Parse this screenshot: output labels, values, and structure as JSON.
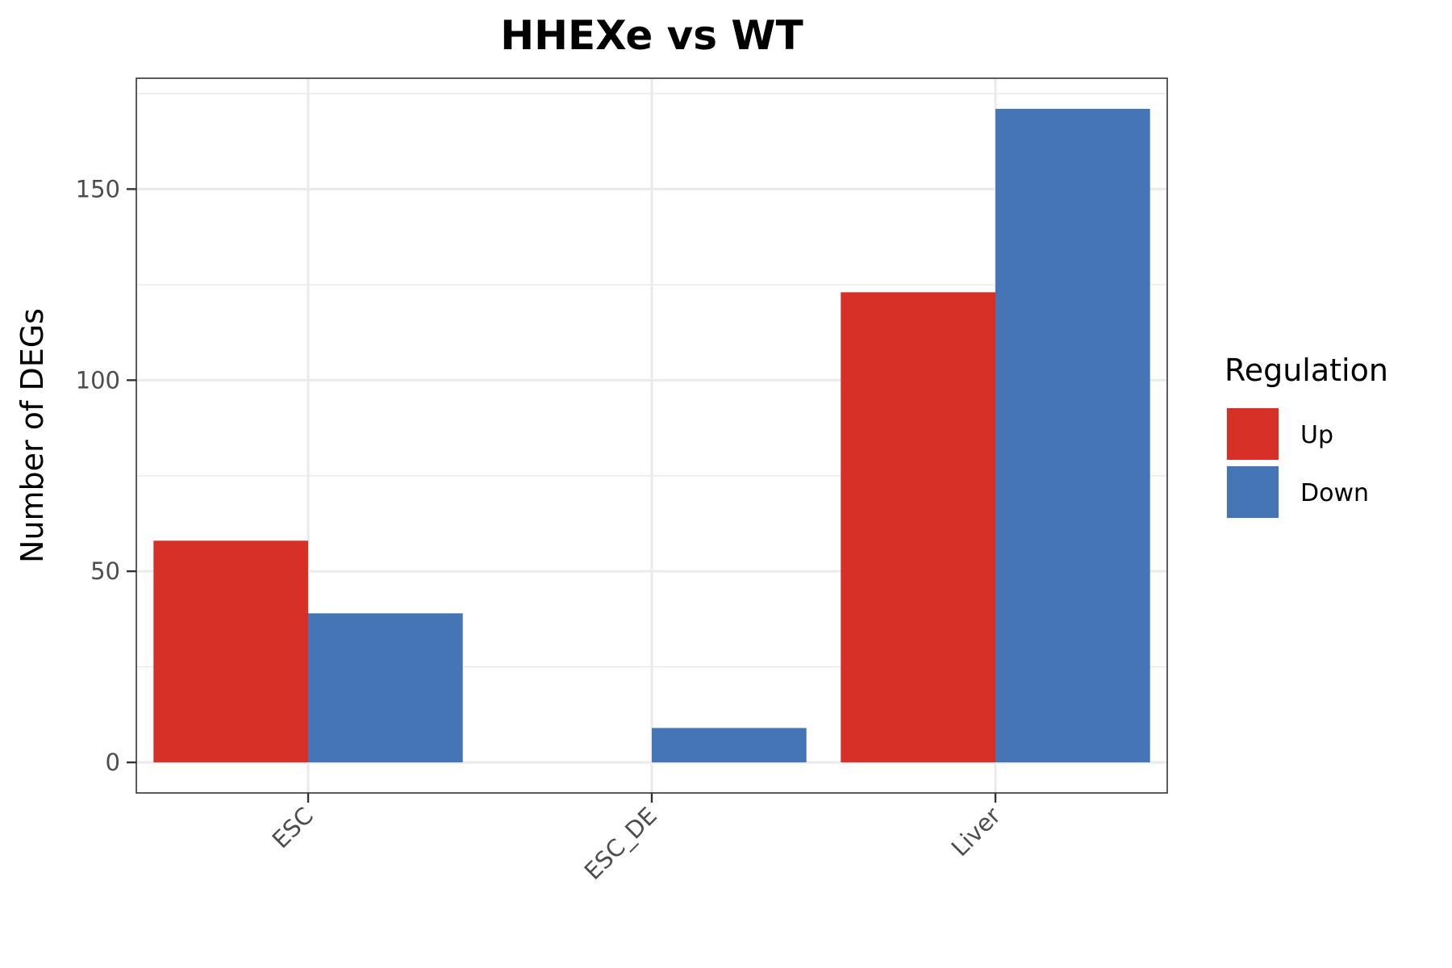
{
  "chart_data": {
    "type": "bar",
    "title": "HHEXe vs WT",
    "xlabel": "",
    "ylabel": "Number of DEGs",
    "categories": [
      "ESC",
      "ESC_DE",
      "Liver"
    ],
    "series": [
      {
        "name": "Up",
        "color": "#d73027",
        "values": [
          58,
          0,
          123
        ]
      },
      {
        "name": "Down",
        "color": "#4575b4",
        "values": [
          39,
          9,
          171
        ]
      }
    ],
    "ylim": [
      -8,
      179
    ],
    "yticks": [
      0,
      50,
      100,
      150
    ],
    "ytick_labels": [
      "0",
      "50",
      "100",
      "150"
    ],
    "grid": true,
    "legend": {
      "title": "Regulation",
      "position": "right"
    }
  }
}
